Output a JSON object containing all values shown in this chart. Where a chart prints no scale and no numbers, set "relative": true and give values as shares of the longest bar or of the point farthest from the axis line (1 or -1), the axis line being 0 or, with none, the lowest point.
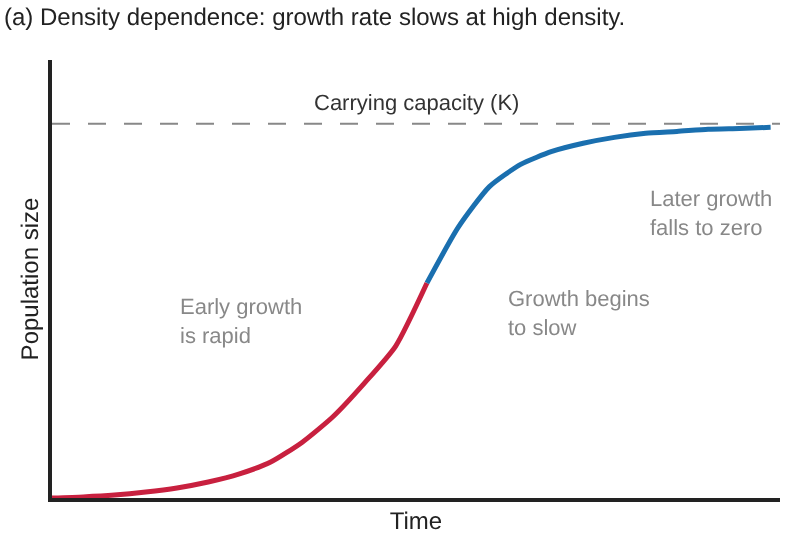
{
  "chart_data": {
    "type": "line",
    "relative": true,
    "title": "(a) Density dependence: growth rate slows at high density.",
    "xlabel": "Time",
    "ylabel": "Population size",
    "categories": [
      null,
      null,
      null,
      null,
      null,
      null,
      null,
      null,
      null,
      null,
      null,
      null,
      null,
      null,
      null,
      null,
      null,
      null,
      null,
      null,
      null,
      null,
      null,
      null
    ],
    "series": [
      {
        "color": "#c8203f",
        "values": [
          0,
          0.003,
          0.008,
          0.016,
          0.027,
          0.043,
          0.065,
          0.097,
          0.15,
          0.22,
          0.31,
          0.41,
          0.58,
          null,
          null,
          null,
          null,
          null,
          null,
          null,
          null,
          null,
          null,
          null
        ]
      },
      {
        "color": "#1a6faf",
        "values": [
          null,
          null,
          null,
          null,
          null,
          null,
          null,
          null,
          null,
          null,
          null,
          null,
          0.58,
          0.73,
          0.84,
          0.9,
          0.935,
          0.957,
          0.973,
          0.984,
          0.989,
          0.995,
          0.997,
          1
        ]
      }
    ],
    "ref_lines": [
      {
        "axis": "y",
        "value": 1.01,
        "label": "Carrying capacity (K)",
        "color": "#888888",
        "line_style": "dashed"
      }
    ],
    "annotations": [
      "Early growth is rapid",
      "Growth begins to slow",
      "Later growth falls to zero"
    ],
    "marker": "none",
    "line_style": "solid"
  }
}
